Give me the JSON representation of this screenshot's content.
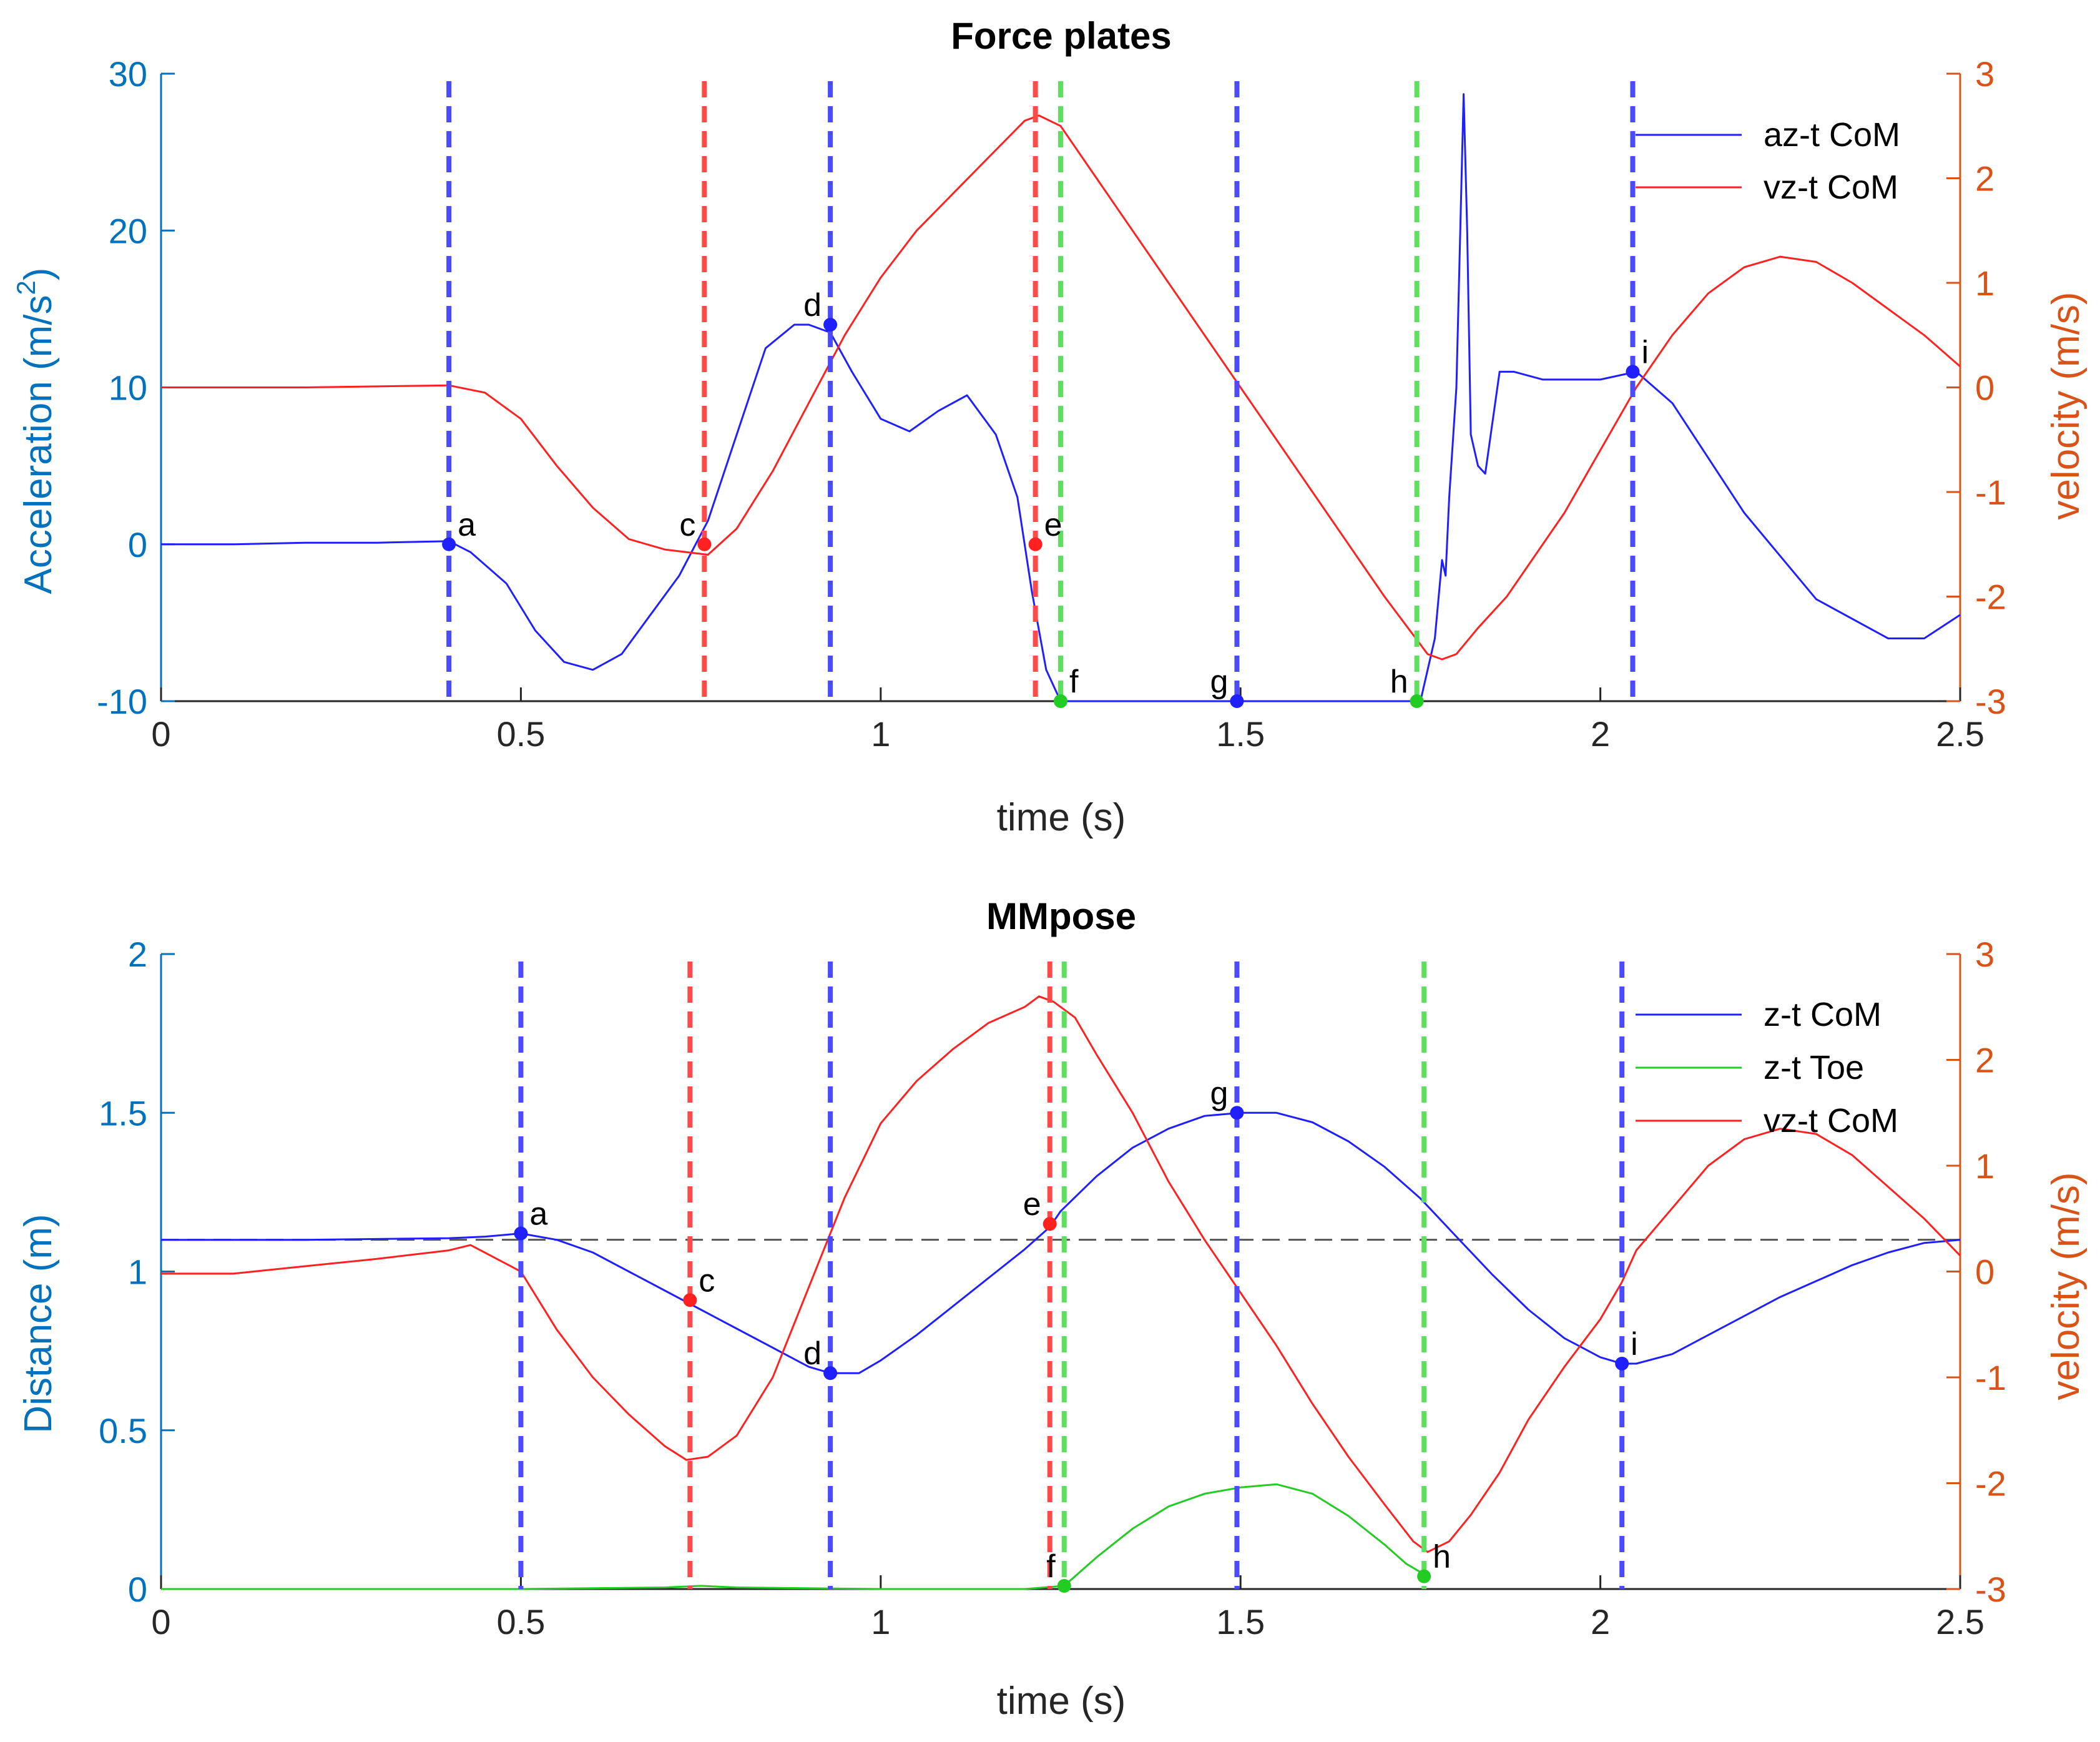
{
  "colors": {
    "left_axis": "#0072BD",
    "right_axis": "#D95319",
    "blue_curve": "#1f1fff",
    "red_curve": "#ff2020",
    "green_curve": "#22cc22",
    "vline_blue": "#4a4aff",
    "vline_red": "#ff4a4a",
    "vline_green": "#5ee05e",
    "dashed_ref": "#555555"
  },
  "chart_data": [
    {
      "id": "top",
      "type": "line",
      "title": "Force plates",
      "xlabel": "time (s)",
      "ylabel_left": "Acceleration (m/s",
      "ylabel_left_sup": "2",
      "ylabel_left_end": ")",
      "ylabel_right": "velocity (m/s)",
      "xlim": [
        0,
        2.5
      ],
      "ylim_left": [
        -10,
        30
      ],
      "ylim_right": [
        -3,
        3
      ],
      "xticks": [
        0,
        0.5,
        1,
        1.5,
        2,
        2.5
      ],
      "xtick_labels": [
        "0",
        "0.5",
        "1",
        "1.5",
        "2",
        "2.5"
      ],
      "yticks_left": [
        -10,
        0,
        10,
        20,
        30
      ],
      "ytick_labels_left": [
        "-10",
        "0",
        "10",
        "20",
        "30"
      ],
      "yticks_right": [
        -3,
        -2,
        -1,
        0,
        1,
        2,
        3
      ],
      "ytick_labels_right": [
        "-3",
        "-2",
        "-1",
        "0",
        "1",
        "2",
        "3"
      ],
      "legend": [
        "az-t CoM",
        "vz-t CoM"
      ],
      "legend_position": "top-right",
      "series": [
        {
          "name": "az-t CoM",
          "axis": "left",
          "color": "blue",
          "x": [
            0,
            0.1,
            0.2,
            0.3,
            0.4,
            0.43,
            0.48,
            0.52,
            0.56,
            0.6,
            0.64,
            0.68,
            0.72,
            0.76,
            0.8,
            0.84,
            0.88,
            0.9,
            0.93,
            0.96,
            1.0,
            1.04,
            1.08,
            1.12,
            1.16,
            1.19,
            1.21,
            1.23,
            1.25,
            1.3,
            1.4,
            1.5,
            1.6,
            1.7,
            1.75,
            1.77,
            1.78,
            1.785,
            1.79,
            1.8,
            1.81,
            1.815,
            1.82,
            1.83,
            1.84,
            1.86,
            1.88,
            1.92,
            2.0,
            2.05,
            2.1,
            2.2,
            2.3,
            2.4,
            2.45,
            2.5
          ],
          "y": [
            0,
            0,
            0.1,
            0.1,
            0.2,
            -0.5,
            -2.5,
            -5.5,
            -7.5,
            -8,
            -7,
            -4.5,
            -2,
            1.5,
            7,
            12.5,
            14,
            14,
            13.5,
            11,
            8,
            7.2,
            8.5,
            9.5,
            7,
            3,
            -3,
            -8,
            -10,
            -10,
            -10,
            -10,
            -10,
            -10,
            -10,
            -6,
            -1,
            -2,
            3,
            10,
            28.7,
            20,
            7,
            5,
            4.5,
            11,
            11,
            10.5,
            10.5,
            11,
            9,
            2,
            -3.5,
            -6,
            -6,
            -4.5
          ]
        },
        {
          "name": "vz-t CoM",
          "axis": "right",
          "color": "red",
          "x": [
            0,
            0.2,
            0.4,
            0.45,
            0.5,
            0.55,
            0.6,
            0.65,
            0.7,
            0.76,
            0.8,
            0.85,
            0.9,
            0.95,
            1.0,
            1.05,
            1.1,
            1.15,
            1.2,
            1.22,
            1.25,
            1.3,
            1.4,
            1.5,
            1.6,
            1.7,
            1.76,
            1.78,
            1.8,
            1.83,
            1.87,
            1.95,
            2.0,
            2.05,
            2.1,
            2.15,
            2.2,
            2.25,
            2.3,
            2.35,
            2.4,
            2.45,
            2.5
          ],
          "y": [
            0,
            0,
            0.02,
            -0.05,
            -0.3,
            -0.75,
            -1.15,
            -1.45,
            -1.55,
            -1.6,
            -1.35,
            -0.8,
            -0.15,
            0.5,
            1.05,
            1.5,
            1.85,
            2.2,
            2.55,
            2.6,
            2.5,
            2.0,
            1.0,
            0,
            -1.0,
            -2.0,
            -2.55,
            -2.6,
            -2.55,
            -2.3,
            -2.0,
            -1.2,
            -0.6,
            0,
            0.5,
            0.9,
            1.15,
            1.25,
            1.2,
            1.0,
            0.75,
            0.5,
            0.2
          ]
        }
      ],
      "event_lines": [
        {
          "x": 0.4,
          "color": "blue"
        },
        {
          "x": 0.755,
          "color": "red"
        },
        {
          "x": 0.93,
          "color": "blue"
        },
        {
          "x": 1.215,
          "color": "red"
        },
        {
          "x": 1.25,
          "color": "green"
        },
        {
          "x": 1.495,
          "color": "blue"
        },
        {
          "x": 1.745,
          "color": "green"
        },
        {
          "x": 2.045,
          "color": "blue"
        }
      ],
      "event_points": [
        {
          "label": "a",
          "x": 0.4,
          "y": 0,
          "color": "blue",
          "label_side": "right"
        },
        {
          "label": "c",
          "x": 0.755,
          "y": 0,
          "color": "red",
          "label_side": "left"
        },
        {
          "label": "d",
          "x": 0.93,
          "y": 14,
          "color": "blue",
          "label_side": "left"
        },
        {
          "label": "e",
          "x": 1.215,
          "y": 0,
          "color": "red",
          "label_side": "right"
        },
        {
          "label": "f",
          "x": 1.25,
          "y": -10,
          "color": "green",
          "label_side": "right"
        },
        {
          "label": "g",
          "x": 1.495,
          "y": -10,
          "color": "blue",
          "label_side": "left"
        },
        {
          "label": "h",
          "x": 1.745,
          "y": -10,
          "color": "green",
          "label_side": "left"
        },
        {
          "label": "i",
          "x": 2.045,
          "y": 11,
          "color": "blue",
          "label_side": "right"
        }
      ]
    },
    {
      "id": "bottom",
      "type": "line",
      "title": "MMpose",
      "xlabel": "time (s)",
      "ylabel_left": "Distance (m)",
      "ylabel_right": "velocity (m/s)",
      "xlim": [
        0,
        2.5
      ],
      "ylim_left": [
        0,
        2
      ],
      "ylim_right": [
        -3,
        3
      ],
      "xticks": [
        0,
        0.5,
        1,
        1.5,
        2,
        2.5
      ],
      "xtick_labels": [
        "0",
        "0.5",
        "1",
        "1.5",
        "2",
        "2.5"
      ],
      "yticks_left": [
        0,
        0.5,
        1,
        1.5,
        2
      ],
      "ytick_labels_left": [
        "0",
        "0.5",
        "1",
        "1.5",
        "2"
      ],
      "yticks_right": [
        -3,
        -2,
        -1,
        0,
        1,
        2,
        3
      ],
      "ytick_labels_right": [
        "-3",
        "-2",
        "-1",
        "0",
        "1",
        "2",
        "3"
      ],
      "reference_line_y": 1.1,
      "legend": [
        "z-t CoM",
        "z-t Toe",
        "vz-t CoM"
      ],
      "legend_position": "top-right",
      "series": [
        {
          "name": "z-t CoM",
          "axis": "left",
          "color": "blue",
          "x": [
            0,
            0.2,
            0.4,
            0.45,
            0.5,
            0.55,
            0.6,
            0.65,
            0.7,
            0.75,
            0.8,
            0.85,
            0.9,
            0.93,
            0.97,
            1.0,
            1.05,
            1.1,
            1.15,
            1.2,
            1.235,
            1.25,
            1.3,
            1.35,
            1.4,
            1.45,
            1.5,
            1.55,
            1.6,
            1.65,
            1.7,
            1.75,
            1.8,
            1.85,
            1.9,
            1.95,
            2.0,
            2.03,
            2.05,
            2.1,
            2.15,
            2.2,
            2.25,
            2.3,
            2.35,
            2.4,
            2.45,
            2.5
          ],
          "y": [
            1.1,
            1.1,
            1.105,
            1.11,
            1.12,
            1.1,
            1.06,
            1.0,
            0.94,
            0.88,
            0.82,
            0.76,
            0.7,
            0.68,
            0.68,
            0.72,
            0.8,
            0.89,
            0.98,
            1.07,
            1.14,
            1.19,
            1.3,
            1.39,
            1.45,
            1.49,
            1.5,
            1.5,
            1.47,
            1.41,
            1.33,
            1.23,
            1.11,
            0.99,
            0.88,
            0.79,
            0.73,
            0.71,
            0.71,
            0.74,
            0.8,
            0.86,
            0.92,
            0.97,
            1.02,
            1.06,
            1.09,
            1.1
          ]
        },
        {
          "name": "z-t Toe",
          "axis": "left",
          "color": "green",
          "x": [
            0,
            0.5,
            0.7,
            0.75,
            0.8,
            1.0,
            1.2,
            1.255,
            1.3,
            1.35,
            1.4,
            1.45,
            1.5,
            1.55,
            1.6,
            1.65,
            1.7,
            1.73,
            1.76
          ],
          "y": [
            0,
            0,
            0.005,
            0.01,
            0.005,
            0,
            0,
            0.01,
            0.1,
            0.19,
            0.26,
            0.3,
            0.32,
            0.33,
            0.3,
            0.23,
            0.14,
            0.08,
            0.04
          ]
        },
        {
          "name": "vz-t CoM",
          "axis": "right",
          "color": "red",
          "x": [
            0,
            0.1,
            0.2,
            0.3,
            0.4,
            0.43,
            0.5,
            0.55,
            0.6,
            0.65,
            0.7,
            0.73,
            0.76,
            0.8,
            0.85,
            0.9,
            0.95,
            1.0,
            1.05,
            1.1,
            1.15,
            1.2,
            1.22,
            1.24,
            1.27,
            1.3,
            1.35,
            1.4,
            1.45,
            1.5,
            1.55,
            1.6,
            1.65,
            1.7,
            1.74,
            1.76,
            1.79,
            1.82,
            1.86,
            1.9,
            1.95,
            2.0,
            2.03,
            2.05,
            2.1,
            2.15,
            2.2,
            2.25,
            2.3,
            2.35,
            2.4,
            2.45,
            2.5
          ],
          "y": [
            -0.02,
            -0.02,
            0.05,
            0.12,
            0.2,
            0.25,
            0.0,
            -0.55,
            -1.0,
            -1.35,
            -1.65,
            -1.78,
            -1.75,
            -1.55,
            -1.0,
            -0.15,
            0.7,
            1.4,
            1.8,
            2.1,
            2.35,
            2.5,
            2.6,
            2.55,
            2.4,
            2.05,
            1.5,
            0.85,
            0.3,
            -0.2,
            -0.7,
            -1.25,
            -1.75,
            -2.2,
            -2.55,
            -2.65,
            -2.55,
            -2.3,
            -1.9,
            -1.4,
            -0.9,
            -0.45,
            -0.1,
            0.2,
            0.6,
            1.0,
            1.25,
            1.35,
            1.3,
            1.1,
            0.8,
            0.5,
            0.15
          ]
        }
      ],
      "event_lines": [
        {
          "x": 0.5,
          "color": "blue"
        },
        {
          "x": 0.735,
          "color": "red"
        },
        {
          "x": 0.93,
          "color": "blue"
        },
        {
          "x": 1.235,
          "color": "red"
        },
        {
          "x": 1.255,
          "color": "green"
        },
        {
          "x": 1.495,
          "color": "blue"
        },
        {
          "x": 1.755,
          "color": "green"
        },
        {
          "x": 2.03,
          "color": "blue"
        }
      ],
      "event_points": [
        {
          "label": "a",
          "x": 0.5,
          "y": 1.12,
          "color": "blue",
          "label_side": "right"
        },
        {
          "label": "c",
          "x": 0.735,
          "y": 0.91,
          "color": "red",
          "label_side": "right"
        },
        {
          "label": "d",
          "x": 0.93,
          "y": 0.68,
          "color": "blue",
          "label_side": "left"
        },
        {
          "label": "e",
          "x": 1.235,
          "y": 1.15,
          "color": "red",
          "label_side": "left"
        },
        {
          "label": "f",
          "x": 1.255,
          "y": 0.01,
          "color": "green",
          "label_side": "left"
        },
        {
          "label": "g",
          "x": 1.495,
          "y": 1.5,
          "color": "blue",
          "label_side": "left"
        },
        {
          "label": "h",
          "x": 1.755,
          "y": 0.04,
          "color": "green",
          "label_side": "right"
        },
        {
          "label": "i",
          "x": 2.03,
          "y": 0.71,
          "color": "blue",
          "label_side": "right"
        }
      ]
    }
  ]
}
